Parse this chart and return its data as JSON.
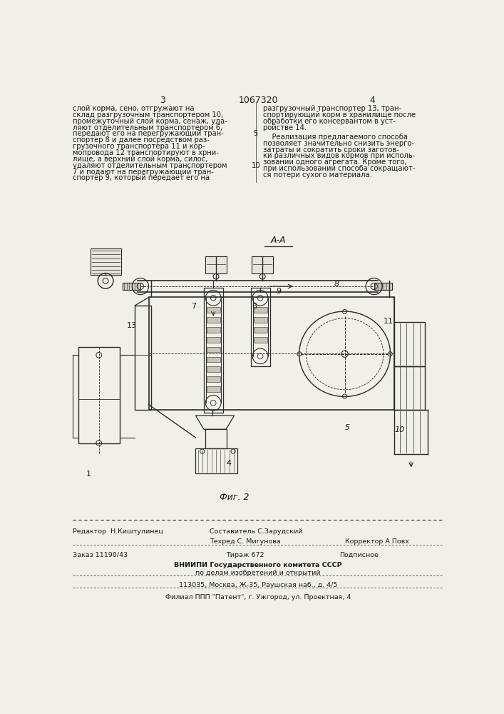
{
  "bg_color": "#f2efe8",
  "page_width": 7.07,
  "page_height": 10.0,
  "header_number": "1067320",
  "page_left": "3",
  "page_right": "4",
  "text_col1_lines": [
    "слой корма, сено, отгружают на",
    "склад разгрузочным транспортером 10,",
    "промежуточный слой корма, сенаж, уда-",
    "ляют отделительным транспортером 6,",
    "передают его на перегружающий тран-",
    "спортер 8 и далее посредством раз-",
    "грузочного транспортера 11 и кор-",
    "мопровода 12 транспортируют в хрни-",
    "лище, а верхний слой корма, силос,",
    "удаляют отделительным транспортером",
    "7 и подают на перегружающий тран-",
    "спортер 9, который передает его на"
  ],
  "text_col2_part1": [
    "разгрузочный транспортер 13, тран-",
    "спортирующий корм в хранилище после",
    "обработки его консервантом в уст-",
    "ройстве 14."
  ],
  "text_col2_part2": [
    "    Реализация предлагаемого способа",
    "позволяет значительно снизить энерго-",
    "затраты и сократить сроки заготов-",
    "ки различных видов кормов при исполь-",
    "зовании одного агрегата. Кроме того,",
    "при использовании способа сокращают-",
    "ся потери сухого материала."
  ],
  "fig_label": "Фиг. 2",
  "section_label": "А-А"
}
